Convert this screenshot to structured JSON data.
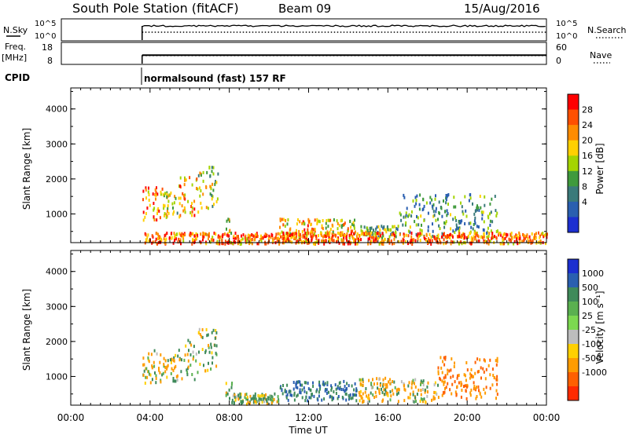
{
  "header": {
    "station": "South Pole Station (fitACF)",
    "beam": "Beam 09",
    "date": "15/Aug/2016"
  },
  "top_panels": {
    "nsky_label": "N.Sky",
    "nsky_ticks": [
      "10^5",
      "10^0"
    ],
    "nsearch_label": "N.Search",
    "nsearch_ticks": [
      "10^5",
      "10^0"
    ],
    "freq_label": "Freq.",
    "freq_unit": "[MHz]",
    "freq_ticks": [
      "18",
      "8"
    ],
    "nave_label": "Nave",
    "nave_ticks": [
      "60",
      "0"
    ],
    "cpid_label": "CPID",
    "cpid_text": "normalsound (fast) 157 RF"
  },
  "power_colorbar": {
    "label": "Power [dB]",
    "ticks": [
      "28",
      "24",
      "20",
      "16",
      "12",
      "8",
      "4"
    ],
    "colors": [
      "#ff0000",
      "#ff5000",
      "#ff8c00",
      "#ffd000",
      "#a4d400",
      "#3f9a3c",
      "#3a7a7a",
      "#2a5fb0",
      "#1c2fd0"
    ]
  },
  "velocity_colorbar": {
    "label": "Velocity [m s⁻¹]",
    "ticks": [
      "1000",
      "500",
      "100",
      "25",
      "-25",
      "-100",
      "-500",
      "-1000"
    ],
    "colors": [
      "#1c2fd0",
      "#2a5fb0",
      "#3f8a5a",
      "#5ab050",
      "#7cd850",
      "#bdbdbd",
      "#ffd000",
      "#ff9c00",
      "#ff6000",
      "#ff2a00"
    ]
  },
  "chart_data": [
    {
      "type": "heatmap",
      "panel": "power",
      "ylabel": "Slant Range [km]",
      "xlabel": "",
      "xlim_hours": [
        0,
        24
      ],
      "ylim_km": [
        180,
        4600
      ],
      "yticks": [
        "4000",
        "3000",
        "2000",
        "1000"
      ],
      "ytick_values": [
        4000,
        3000,
        2000,
        1000
      ],
      "echo_regions": [
        {
          "t0": 3.6,
          "t1": 4.6,
          "r0": 850,
          "r1": 1800,
          "value_db": 24
        },
        {
          "t0": 4.6,
          "t1": 5.4,
          "r0": 900,
          "r1": 1650,
          "value_db": 16
        },
        {
          "t0": 5.4,
          "t1": 6.4,
          "r0": 950,
          "r1": 2100,
          "value_db": 22
        },
        {
          "t0": 6.4,
          "t1": 7.4,
          "r0": 1200,
          "r1": 2400,
          "value_db": 14
        },
        {
          "t0": 7.8,
          "t1": 8.1,
          "r0": 400,
          "r1": 900,
          "value_db": 16
        },
        {
          "t0": 10.5,
          "t1": 12.7,
          "r0": 350,
          "r1": 900,
          "value_db": 20
        },
        {
          "t0": 12.8,
          "t1": 14.4,
          "r0": 380,
          "r1": 900,
          "value_db": 18
        },
        {
          "t0": 14.5,
          "t1": 16.5,
          "r0": 350,
          "r1": 700,
          "value_db": 10
        },
        {
          "t0": 16.5,
          "t1": 21.5,
          "r0": 350,
          "r1": 1600,
          "value_db": 8
        },
        {
          "t0": 3.7,
          "t1": 24.0,
          "r0": 180,
          "r1": 500,
          "value_db": 24
        }
      ]
    },
    {
      "type": "heatmap",
      "panel": "velocity",
      "ylabel": "Slant Range [km]",
      "xlabel": "Time UT",
      "xlim_hours": [
        0,
        24
      ],
      "ylim_km": [
        180,
        4600
      ],
      "yticks": [
        "4000",
        "3000",
        "2000",
        "1000"
      ],
      "ytick_values": [
        4000,
        3000,
        2000,
        1000
      ],
      "xticks": [
        "00:00",
        "04:00",
        "08:00",
        "12:00",
        "16:00",
        "20:00",
        "00:00"
      ],
      "xtick_values": [
        0,
        4,
        8,
        12,
        16,
        20,
        24
      ],
      "echo_regions": [
        {
          "t0": 3.6,
          "t1": 4.6,
          "r0": 850,
          "r1": 1800,
          "value_ms": -100
        },
        {
          "t0": 4.6,
          "t1": 5.4,
          "r0": 900,
          "r1": 1650,
          "value_ms": -100
        },
        {
          "t0": 5.4,
          "t1": 6.4,
          "r0": 950,
          "r1": 2100,
          "value_ms": 25
        },
        {
          "t0": 6.4,
          "t1": 7.4,
          "r0": 1200,
          "r1": 2400,
          "value_ms": 100
        },
        {
          "t0": 7.8,
          "t1": 8.1,
          "r0": 400,
          "r1": 900,
          "value_ms": 100
        },
        {
          "t0": 8.1,
          "t1": 10.5,
          "r0": 250,
          "r1": 550,
          "value_ms": 100
        },
        {
          "t0": 10.5,
          "t1": 14.4,
          "r0": 350,
          "r1": 900,
          "value_ms": 500
        },
        {
          "t0": 14.5,
          "t1": 18.5,
          "r0": 300,
          "r1": 1000,
          "value_ms": -100
        },
        {
          "t0": 18.5,
          "t1": 21.5,
          "r0": 400,
          "r1": 1600,
          "value_ms": -500
        }
      ]
    }
  ],
  "top_series": {
    "nsky_level": 0.85,
    "nsearch_level": 0.45,
    "freq_level_mhz": 12.2,
    "nave_level": 24,
    "data_start_hour": 3.6
  }
}
